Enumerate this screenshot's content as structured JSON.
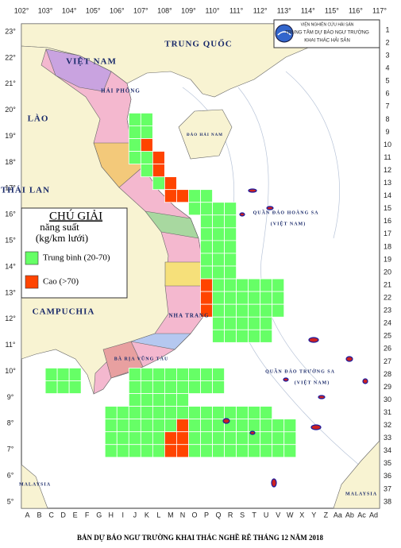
{
  "header": {
    "lines": [
      "VIỆN NGHIÊN CỨU HẢI SẢN",
      "TRUNG TÂM DỰ BÁO NGƯ TRƯỜNG",
      "KHAI THÁC HẢI SẢN"
    ]
  },
  "axes": {
    "longitudes": [
      "102°",
      "103°",
      "104°",
      "105°",
      "106°",
      "107°",
      "108°",
      "109°",
      "110°",
      "111°",
      "112°",
      "113°",
      "114°",
      "115°",
      "116°",
      "117°"
    ],
    "latitudes": [
      "23°",
      "22°",
      "21°",
      "20°",
      "19°",
      "18°",
      "17°",
      "16°",
      "15°",
      "14°",
      "13°",
      "12°",
      "11°",
      "10°",
      "9°",
      "8°",
      "7°",
      "6°",
      "5°"
    ],
    "columns": [
      "A",
      "B",
      "C",
      "D",
      "E",
      "F",
      "G",
      "H",
      "I",
      "J",
      "K",
      "L",
      "M",
      "N",
      "O",
      "P",
      "Q",
      "R",
      "S",
      "T",
      "U",
      "V",
      "W",
      "X",
      "Y",
      "Z",
      "Aa",
      "Ab",
      "Ac",
      "Ad"
    ],
    "rows": [
      "1",
      "2",
      "3",
      "4",
      "5",
      "6",
      "7",
      "8",
      "9",
      "10",
      "11",
      "12",
      "13",
      "14",
      "15",
      "16",
      "17",
      "18",
      "19",
      "20",
      "21",
      "22",
      "23",
      "24",
      "25",
      "26",
      "27",
      "28",
      "29",
      "30",
      "31",
      "32",
      "33",
      "34",
      "35",
      "36",
      "37",
      "38"
    ]
  },
  "places": {
    "china": "TRUNG QUỐC",
    "vietnam": "VIỆT NAM",
    "laos": "LÀO",
    "thailand": "THÁI LAN",
    "cambodia": "CAMPUCHIA",
    "hainan": "ĐẢO HẢI NAM",
    "haiphong": "HẢI PHÒNG",
    "nhatrang": "NHA TRANG",
    "vungtau": "BÀ RỊA VŨNG TÀU",
    "hoangsa": "QUẦN ĐẢO HOÀNG SA",
    "hoangsa_vn": "(VIỆT NAM)",
    "truongsa": "QUẦN ĐẢO TRƯỜNG SA",
    "truongsa_vn": "(VIỆT NAM)",
    "malaysia_w": "MALAYSIA",
    "malaysia_e": "MALAYSIA"
  },
  "legend": {
    "title": "CHÚ GIẢI",
    "subtitle": "năng suất",
    "unit": "(kg/km lưới)",
    "items": [
      {
        "label": "Trung bình (20-70)",
        "color": "#66ff66"
      },
      {
        "label": "Cao (>70)",
        "color": "#ff4400"
      }
    ]
  },
  "footer": "BẢN DỰ BÁO NGƯ TRƯỜNG KHAI THÁC NGHỀ RÊ THÁNG 12 NĂM 2018"
}
